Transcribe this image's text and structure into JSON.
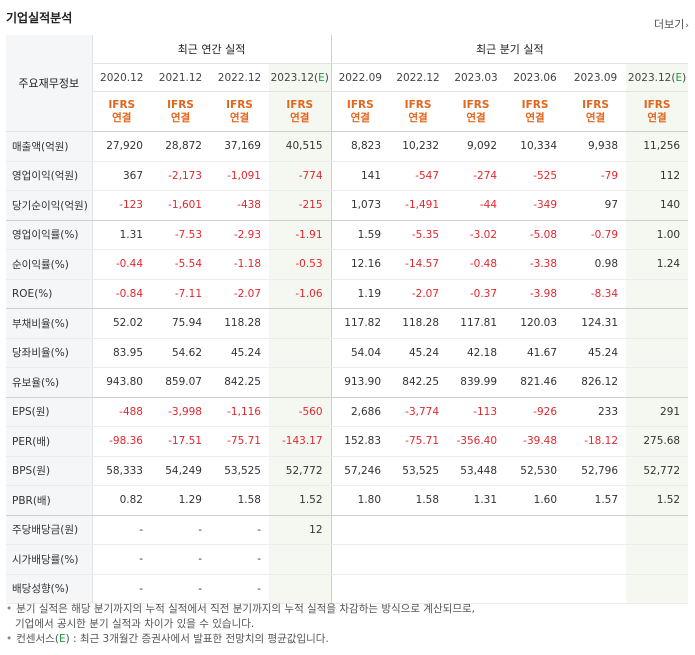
{
  "header": {
    "title": "기업실적분석",
    "more_label": "더보기",
    "more_arrow": "›"
  },
  "table": {
    "row_label_header": "주요재무정보",
    "group_annual": "최근 연간 실적",
    "group_quarter": "최근 분기 실적",
    "periods": [
      "2020.12",
      "2021.12",
      "2022.12",
      "2023.12(E)",
      "2022.09",
      "2022.12",
      "2023.03",
      "2023.06",
      "2023.09",
      "2023.12(E)"
    ],
    "standard_line1": "IFRS",
    "standard_line2": "연결",
    "rows": [
      {
        "label": "매출액(억원)",
        "values": [
          "27,920",
          "28,872",
          "37,169",
          "40,515",
          "8,823",
          "10,232",
          "9,092",
          "10,334",
          "9,938",
          "11,256"
        ]
      },
      {
        "label": "영업이익(억원)",
        "values": [
          "367",
          "-2,173",
          "-1,091",
          "-774",
          "141",
          "-547",
          "-274",
          "-525",
          "-79",
          "112"
        ]
      },
      {
        "label": "당기순이익(억원)",
        "values": [
          "-123",
          "-1,601",
          "-438",
          "-215",
          "1,073",
          "-1,491",
          "-44",
          "-349",
          "97",
          "140"
        ]
      },
      {
        "label": "영업이익률(%)",
        "values": [
          "1.31",
          "-7.53",
          "-2.93",
          "-1.91",
          "1.59",
          "-5.35",
          "-3.02",
          "-5.08",
          "-0.79",
          "1.00"
        ]
      },
      {
        "label": "순이익률(%)",
        "values": [
          "-0.44",
          "-5.54",
          "-1.18",
          "-0.53",
          "12.16",
          "-14.57",
          "-0.48",
          "-3.38",
          "0.98",
          "1.24"
        ]
      },
      {
        "label": "ROE(%)",
        "values": [
          "-0.84",
          "-7.11",
          "-2.07",
          "-1.06",
          "1.19",
          "-2.07",
          "-0.37",
          "-3.98",
          "-8.34",
          ""
        ]
      },
      {
        "label": "부채비율(%)",
        "values": [
          "52.02",
          "75.94",
          "118.28",
          "",
          "117.82",
          "118.28",
          "117.81",
          "120.03",
          "124.31",
          ""
        ]
      },
      {
        "label": "당좌비율(%)",
        "values": [
          "83.95",
          "54.62",
          "45.24",
          "",
          "54.04",
          "45.24",
          "42.18",
          "41.67",
          "45.24",
          ""
        ]
      },
      {
        "label": "유보율(%)",
        "values": [
          "943.80",
          "859.07",
          "842.25",
          "",
          "913.90",
          "842.25",
          "839.99",
          "821.46",
          "826.12",
          ""
        ]
      },
      {
        "label": "EPS(원)",
        "values": [
          "-488",
          "-3,998",
          "-1,116",
          "-560",
          "2,686",
          "-3,774",
          "-113",
          "-926",
          "233",
          "291"
        ]
      },
      {
        "label": "PER(배)",
        "values": [
          "-98.36",
          "-17.51",
          "-75.71",
          "-143.17",
          "152.83",
          "-75.71",
          "-356.40",
          "-39.48",
          "-18.12",
          "275.68"
        ]
      },
      {
        "label": "BPS(원)",
        "values": [
          "58,333",
          "54,249",
          "53,525",
          "52,772",
          "57,246",
          "53,525",
          "53,448",
          "52,530",
          "52,796",
          "52,772"
        ]
      },
      {
        "label": "PBR(배)",
        "values": [
          "0.82",
          "1.29",
          "1.58",
          "1.52",
          "1.80",
          "1.58",
          "1.31",
          "1.60",
          "1.57",
          "1.52"
        ]
      },
      {
        "label": "주당배당금(원)",
        "values": [
          "-",
          "-",
          "-",
          "12",
          "",
          "",
          "",
          "",
          "",
          ""
        ]
      },
      {
        "label": "시가배당률(%)",
        "values": [
          "-",
          "-",
          "-",
          "",
          "",
          "",
          "",
          "",
          "",
          ""
        ]
      },
      {
        "label": "배당성향(%)",
        "values": [
          "-",
          "-",
          "-",
          "",
          "",
          "",
          "",
          "",
          "",
          ""
        ]
      }
    ]
  },
  "footnotes": [
    "분기 실적은 해당 분기까지의 누적 실적에서 직전 분기까지의 누적 실적을 차감하는 방식으로 계산되므로,",
    "기업에서 공시한 분기 실적과 차이가 있을 수 있습니다.",
    "컨센서스(E) : 최근 3개월간 증권사에서 발표한 전망치의 평균값입니다."
  ],
  "colors": {
    "negative": "#e0282e",
    "ifrs": "#e2661e",
    "estimate_bg": "#f4f8f1",
    "estimate_letter": "#1a9d3a"
  }
}
